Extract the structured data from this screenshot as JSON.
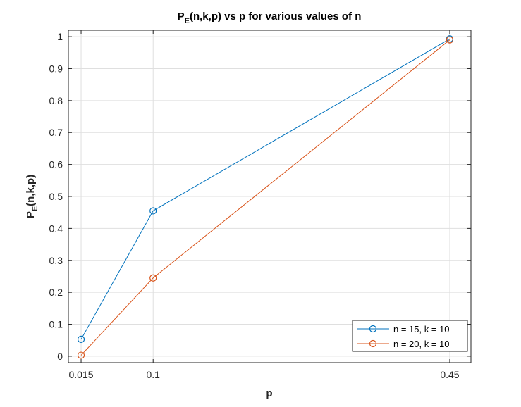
{
  "chart_data": {
    "type": "line",
    "title_main": "P",
    "title_sub": "E",
    "title_rest": "(n,k,p) vs p for various values of n",
    "xlabel": "p",
    "ylabel_main": "P",
    "ylabel_sub": "E",
    "ylabel_rest": "(n,k,p)",
    "xlim": [
      0,
      0.475
    ],
    "ylim": [
      -0.02,
      1.02
    ],
    "xticks": [
      0.015,
      0.1,
      0.45
    ],
    "xtick_labels": [
      "0.015",
      "0.1",
      "0.45"
    ],
    "yticks": [
      0,
      0.1,
      0.2,
      0.3,
      0.4,
      0.5,
      0.6,
      0.7,
      0.8,
      0.9,
      1
    ],
    "ytick_labels": [
      "0",
      "0.1",
      "0.2",
      "0.3",
      "0.4",
      "0.5",
      "0.6",
      "0.7",
      "0.8",
      "0.9",
      "1"
    ],
    "grid": true,
    "legend_position": "bottom-right",
    "x": [
      0.015,
      0.1,
      0.45
    ],
    "series": [
      {
        "name": "n = 15, k = 10",
        "color": "#0072BD",
        "marker": "circle",
        "values": [
          0.053,
          0.455,
          0.993
        ]
      },
      {
        "name": "n = 20, k = 10",
        "color": "#D95319",
        "marker": "circle",
        "values": [
          0.003,
          0.245,
          0.99
        ]
      }
    ]
  }
}
